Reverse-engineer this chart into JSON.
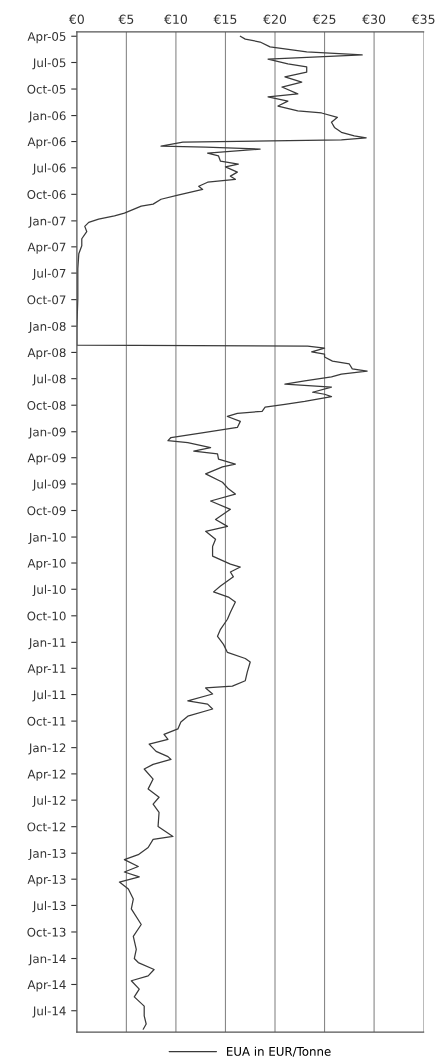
{
  "chart_data": {
    "type": "line",
    "orientation": "horizontal",
    "x": [
      "2005-04-01",
      "2005-04-11",
      "2005-04-21",
      "2005-05-08",
      "2005-05-25",
      "2005-06-05",
      "2005-06-12",
      "2005-06-19",
      "2005-07-06",
      "2005-07-16",
      "2005-08-03",
      "2005-08-20",
      "2005-09-07",
      "2005-09-24",
      "2005-10-18",
      "2005-10-28",
      "2005-11-12",
      "2005-11-29",
      "2005-12-16",
      "2005-12-23",
      "2006-01-07",
      "2006-01-24",
      "2006-02-11",
      "2006-02-28",
      "2006-03-12",
      "2006-03-19",
      "2006-03-26",
      "2006-04-03",
      "2006-04-17",
      "2006-04-20",
      "2006-04-27",
      "2006-05-11",
      "2006-05-21",
      "2006-06-08",
      "2006-06-18",
      "2006-06-28",
      "2006-07-16",
      "2006-07-30",
      "2006-08-10",
      "2006-08-20",
      "2006-09-03",
      "2006-09-14",
      "2006-10-04",
      "2006-10-18",
      "2006-11-04",
      "2006-11-11",
      "2006-12-05",
      "2006-12-15",
      "2006-12-26",
      "2007-01-06",
      "2007-01-20",
      "2007-02-07",
      "2007-03-04",
      "2007-03-28",
      "2007-04-25",
      "2007-06-16",
      "2007-09-29",
      "2008-01-11",
      "2008-03-07",
      "2008-03-10",
      "2008-03-17",
      "2008-03-30",
      "2008-04-07",
      "2008-04-17",
      "2008-05-01",
      "2008-05-11",
      "2008-05-28",
      "2008-06-05",
      "2008-06-15",
      "2008-06-25",
      "2008-07-09",
      "2008-07-20",
      "2008-07-30",
      "2008-08-17",
      "2008-08-24",
      "2008-09-01",
      "2008-09-18",
      "2008-09-28",
      "2008-10-08",
      "2008-10-22",
      "2008-10-29",
      "2008-11-09",
      "2008-11-26",
      "2008-12-17",
      "2009-01-04",
      "2009-01-21",
      "2009-02-01",
      "2009-02-08",
      "2009-02-25",
      "2009-03-09",
      "2009-03-19",
      "2009-04-06",
      "2009-04-23",
      "2009-05-03",
      "2009-05-27",
      "2009-06-25",
      "2009-07-18",
      "2009-08-05",
      "2009-08-29",
      "2009-09-27",
      "2009-11-01",
      "2009-11-25",
      "2009-12-12",
      "2010-01-09",
      "2010-02-03",
      "2010-03-08",
      "2010-04-05",
      "2010-04-15",
      "2010-05-02",
      "2010-05-19",
      "2010-06-20",
      "2010-07-10",
      "2010-07-28",
      "2010-08-14",
      "2010-09-19",
      "2010-10-13",
      "2010-11-17",
      "2010-12-11",
      "2011-01-08",
      "2011-02-05",
      "2011-02-26",
      "2011-03-10",
      "2011-04-14",
      "2011-05-14",
      "2011-06-02",
      "2011-06-08",
      "2011-06-29",
      "2011-07-23",
      "2011-08-03",
      "2011-08-20",
      "2011-09-14",
      "2011-10-04",
      "2011-10-28",
      "2011-11-16",
      "2011-12-03",
      "2011-12-20",
      "2012-01-14",
      "2012-02-01",
      "2012-02-11",
      "2012-02-28",
      "2012-03-15",
      "2012-04-19",
      "2012-05-23",
      "2012-06-21",
      "2012-07-15",
      "2012-08-12",
      "2012-09-30",
      "2012-11-04",
      "2012-11-14",
      "2012-12-12",
      "2013-01-06",
      "2013-01-23",
      "2013-02-16",
      "2013-03-07",
      "2013-03-24",
      "2013-04-11",
      "2013-05-05",
      "2013-06-09",
      "2013-07-13",
      "2013-09-05",
      "2013-10-16",
      "2013-11-30",
      "2014-01-01",
      "2014-01-15",
      "2014-02-08",
      "2014-03-02",
      "2014-03-19",
      "2014-04-17",
      "2014-05-14",
      "2014-06-15",
      "2014-07-19",
      "2014-08-16",
      "2014-09-03"
    ],
    "series": [
      {
        "name": "EUA in EUR/Tonne",
        "color": "#3a3a3a",
        "values": [
          16.5,
          17.0,
          18.5,
          19.5,
          23.2,
          28.8,
          23.8,
          19.3,
          21.3,
          23.2,
          23.2,
          21.0,
          22.7,
          20.7,
          22.3,
          19.3,
          21.3,
          20.3,
          22.3,
          24.7,
          26.3,
          25.7,
          26.0,
          26.7,
          28.0,
          29.2,
          26.7,
          10.7,
          8.5,
          13.0,
          18.5,
          13.2,
          14.3,
          14.5,
          16.3,
          15.0,
          16.2,
          15.5,
          16.0,
          13.2,
          12.3,
          12.7,
          10.2,
          8.5,
          7.7,
          6.5,
          4.8,
          3.8,
          2.2,
          1.2,
          0.8,
          1.0,
          0.5,
          0.5,
          0.2,
          0.1,
          0.1,
          0.0,
          0.0,
          23.3,
          25.0,
          23.7,
          25.0,
          25.0,
          25.8,
          27.5,
          27.8,
          29.3,
          26.7,
          25.7,
          23.0,
          21.0,
          25.7,
          23.8,
          25.0,
          25.7,
          23.0,
          21.0,
          19.0,
          18.7,
          16.2,
          15.2,
          16.5,
          16.2,
          12.8,
          9.5,
          9.2,
          11.2,
          13.5,
          11.8,
          14.2,
          14.3,
          16.0,
          14.7,
          13.0,
          14.7,
          15.3,
          16.0,
          13.5,
          15.5,
          14.0,
          15.2,
          13.0,
          14.0,
          13.7,
          13.7,
          15.5,
          16.5,
          15.5,
          15.8,
          14.5,
          13.8,
          15.3,
          16.0,
          15.5,
          15.2,
          14.5,
          14.2,
          14.8,
          15.2,
          17.0,
          17.5,
          17.2,
          17.0,
          15.7,
          13.0,
          13.7,
          11.2,
          13.2,
          13.7,
          11.2,
          10.5,
          10.2,
          8.8,
          9.2,
          7.3,
          8.0,
          9.2,
          9.5,
          7.7,
          6.8,
          7.7,
          7.2,
          8.3,
          7.7,
          8.3,
          8.2,
          9.7,
          7.7,
          7.2,
          6.2,
          4.8,
          6.2,
          4.8,
          6.3,
          4.3,
          5.2,
          5.7,
          5.5,
          6.5,
          5.7,
          6.0,
          5.8,
          6.2,
          7.8,
          7.2,
          5.5,
          6.3,
          5.8,
          6.8,
          6.8,
          7.0,
          6.7
        ]
      }
    ],
    "xlim": [
      0,
      35
    ],
    "xticks": [
      {
        "value": 0,
        "label": "€0"
      },
      {
        "value": 5,
        "label": "€5"
      },
      {
        "value": 10,
        "label": "€10"
      },
      {
        "value": 15,
        "label": "€15"
      },
      {
        "value": 20,
        "label": "€20"
      },
      {
        "value": 25,
        "label": "€25"
      },
      {
        "value": 30,
        "label": "€30"
      },
      {
        "value": 35,
        "label": "€35"
      }
    ],
    "ylim": [
      "2014-09-13",
      "2005-03-17"
    ],
    "yticks": [
      {
        "value": "2005-04-01",
        "label": "Apr-05"
      },
      {
        "value": "2005-07-01",
        "label": "Jul-05"
      },
      {
        "value": "2005-10-01",
        "label": "Oct-05"
      },
      {
        "value": "2006-01-01",
        "label": "Jan-06"
      },
      {
        "value": "2006-04-01",
        "label": "Apr-06"
      },
      {
        "value": "2006-07-01",
        "label": "Jul-06"
      },
      {
        "value": "2006-10-01",
        "label": "Oct-06"
      },
      {
        "value": "2007-01-01",
        "label": "Jan-07"
      },
      {
        "value": "2007-04-01",
        "label": "Apr-07"
      },
      {
        "value": "2007-07-01",
        "label": "Jul-07"
      },
      {
        "value": "2007-10-01",
        "label": "Oct-07"
      },
      {
        "value": "2008-01-01",
        "label": "Jan-08"
      },
      {
        "value": "2008-04-01",
        "label": "Apr-08"
      },
      {
        "value": "2008-07-01",
        "label": "Jul-08"
      },
      {
        "value": "2008-10-01",
        "label": "Oct-08"
      },
      {
        "value": "2009-01-01",
        "label": "Jan-09"
      },
      {
        "value": "2009-04-01",
        "label": "Apr-09"
      },
      {
        "value": "2009-07-01",
        "label": "Jul-09"
      },
      {
        "value": "2009-10-01",
        "label": "Oct-09"
      },
      {
        "value": "2010-01-01",
        "label": "Jan-10"
      },
      {
        "value": "2010-04-01",
        "label": "Apr-10"
      },
      {
        "value": "2010-07-01",
        "label": "Jul-10"
      },
      {
        "value": "2010-10-01",
        "label": "Oct-10"
      },
      {
        "value": "2011-01-01",
        "label": "Jan-11"
      },
      {
        "value": "2011-04-01",
        "label": "Apr-11"
      },
      {
        "value": "2011-07-01",
        "label": "Jul-11"
      },
      {
        "value": "2011-10-01",
        "label": "Oct-11"
      },
      {
        "value": "2012-01-01",
        "label": "Jan-12"
      },
      {
        "value": "2012-04-01",
        "label": "Apr-12"
      },
      {
        "value": "2012-07-01",
        "label": "Jul-12"
      },
      {
        "value": "2012-10-01",
        "label": "Oct-12"
      },
      {
        "value": "2013-01-01",
        "label": "Jan-13"
      },
      {
        "value": "2013-04-01",
        "label": "Apr-13"
      },
      {
        "value": "2013-07-01",
        "label": "Jul-13"
      },
      {
        "value": "2013-10-01",
        "label": "Oct-13"
      },
      {
        "value": "2014-01-01",
        "label": "Jan-14"
      },
      {
        "value": "2014-04-01",
        "label": "Apr-14"
      },
      {
        "value": "2014-07-01",
        "label": "Jul-14"
      }
    ],
    "grid": "x",
    "legend": "bottom",
    "line_style": "solid"
  }
}
